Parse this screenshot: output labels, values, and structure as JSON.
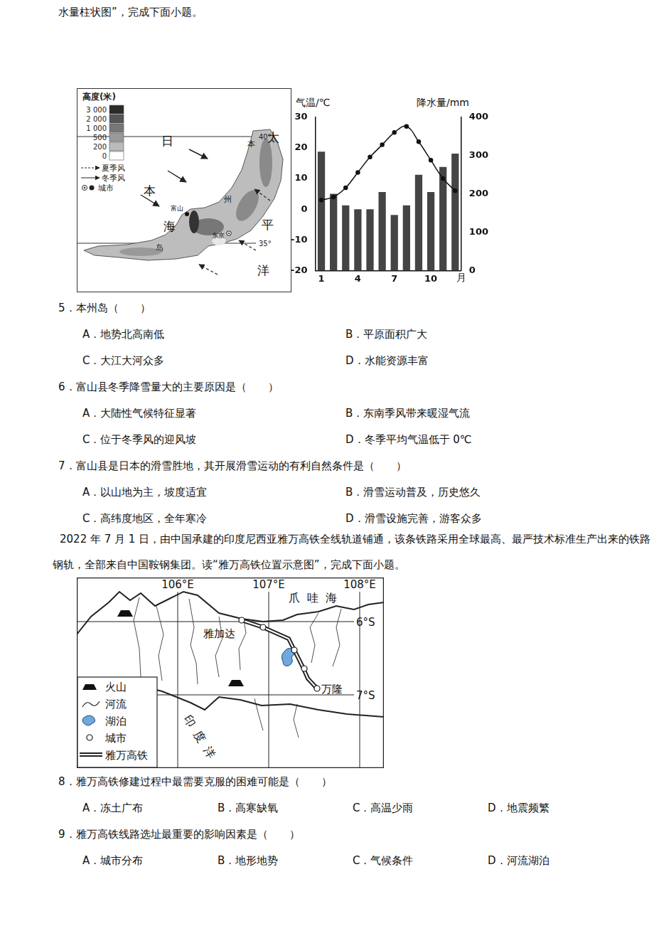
{
  "intro": "水量柱状图”，完成下面小题。",
  "japan_map": {
    "legend_title": "高度(米)",
    "elevation_levels": [
      "3 000",
      "2 000",
      "1 000",
      "500",
      "200",
      "0"
    ],
    "legend_items": [
      "夏季风",
      "冬季风",
      "城市"
    ],
    "sea_labels": [
      [
        "日",
        "本",
        "海"
      ],
      [
        "太",
        "平",
        "洋"
      ]
    ],
    "island_label": [
      "本",
      "州",
      "岛"
    ],
    "cities": [
      "富山",
      "东京"
    ],
    "latitudes": [
      "40°",
      "35°"
    ]
  },
  "chart_data": {
    "type": "bar",
    "categories": [
      "1",
      null,
      null,
      "4",
      null,
      null,
      "7",
      null,
      null,
      "10",
      null,
      null
    ],
    "x_label": "月",
    "y_label": "气温/℃",
    "y2_label": "降水量/mm",
    "ylim": [
      -20,
      30
    ],
    "yticks": [
      -20,
      -10,
      0,
      10,
      20,
      30
    ],
    "y2lim": [
      0,
      400
    ],
    "y2ticks": [
      0,
      100,
      200,
      300,
      400
    ],
    "grid": false,
    "series": [
      {
        "type": "line",
        "color": "#111111",
        "marker": "circle",
        "values": [
          3,
          4,
          7,
          12,
          17,
          21,
          25,
          27,
          22,
          16,
          10,
          6
        ]
      },
      {
        "type": "bar",
        "axis": "y2",
        "color": "#444444",
        "values": [
          310,
          200,
          170,
          160,
          160,
          205,
          145,
          170,
          250,
          205,
          270,
          305
        ]
      }
    ]
  },
  "questions_1": [
    {
      "stem": "5．本州岛（　　）",
      "options": [
        "A．地势北高南低",
        "B．平原面积广大",
        "C．大江大河众多",
        "D．水能资源丰富"
      ]
    },
    {
      "stem": "6．富山县冬季降雪量大的主要原因是（　　）",
      "options": [
        "A．大陆性气候特征显著",
        "B．东南季风带来暖湿气流",
        "C．位于冬季风的迎风坡",
        "D．冬季平均气温低于 0℃"
      ]
    },
    {
      "stem": "7．富山县是日本的滑雪胜地，其开展滑雪运动的有利自然条件是（　　）",
      "options": [
        "A．以山地为主，坡度适宜",
        "B．滑雪运动普及，历史悠久",
        "C．高纬度地区，全年寒冷",
        "D．滑雪设施完善，游客众多"
      ]
    }
  ],
  "passage": "2022 年 7 月 1 日，由中国承建的印度尼西亚雅万高铁全线轨道铺通，该条铁路采用全球最高、最严技术标准生产出来的铁路钢轨，全部来自中国鞍钢集团。读“雅万高铁位置示意图”，完成下面小题。",
  "yawan_map": {
    "longitudes": [
      "106°E",
      "107°E",
      "108°E"
    ],
    "latitudes": [
      "6°S",
      "7°S"
    ],
    "sea_label": [
      "爪",
      "哇",
      "海"
    ],
    "ocean_label": "印度洋",
    "cities": [
      "雅加达",
      "万隆"
    ],
    "legend_items": [
      "火山",
      "河流",
      "湖泊",
      "城市",
      "雅万高铁"
    ]
  },
  "questions_2": [
    {
      "stem": "8．雅万高铁修建过程中最需要克服的困难可能是（　　）",
      "options": [
        "A．冻土广布",
        "B．高寒缺氧",
        "C．高温少雨",
        "D．地震频繁"
      ]
    },
    {
      "stem": "9．雅万高铁线路选址最重要的影响因素是（　　）",
      "options": [
        "A．城市分布",
        "B．地形地势",
        "C．气候条件",
        "D．河流湖泊"
      ]
    }
  ]
}
